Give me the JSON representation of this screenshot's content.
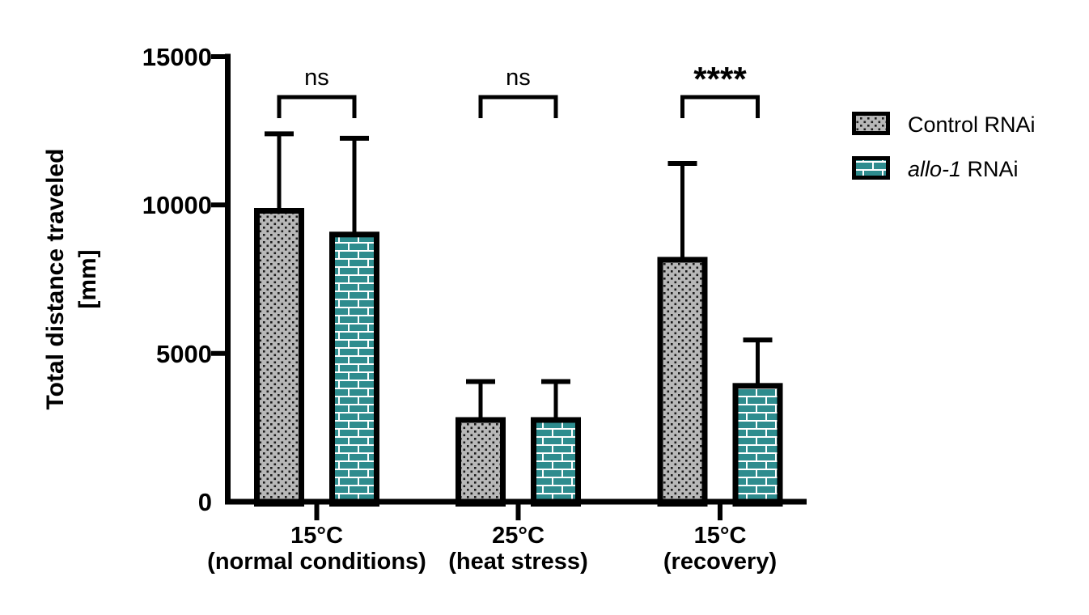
{
  "figure": {
    "background": "#ffffff"
  },
  "colors": {
    "control_fill": "#b8b8b8",
    "dot": "#1a1a1a",
    "allo1_fill": "#2E8C8E",
    "mortar": "#ffffff",
    "outline": "#000000"
  },
  "chart_data": {
    "type": "bar",
    "title": "",
    "ylabel_lines": [
      "Total distance traveled",
      "[mm]"
    ],
    "xlabel": "",
    "ylim": [
      0,
      15000
    ],
    "yticks": [
      0,
      5000,
      10000,
      15000
    ],
    "ytick_labels_top_to_bottom": [
      "15000",
      "10000",
      "5000",
      "0"
    ],
    "grid": false,
    "legend_position": "right",
    "error_bars": "upper SD only",
    "categories": [
      {
        "label": "15°C",
        "sublabel": "(normal conditions)"
      },
      {
        "label": "25°C",
        "sublabel": "(heat stress)"
      },
      {
        "label": "15°C",
        "sublabel": "(recovery)"
      }
    ],
    "series": [
      {
        "name": "Control RNAi",
        "pattern": "dots",
        "fill": "#b8b8b8",
        "values": [
          9900,
          2850,
          8250
        ],
        "errors": [
          2500,
          1200,
          3150
        ]
      },
      {
        "name": "allo-1 RNAi",
        "pattern": "bricks",
        "fill": "#2E8C8E",
        "values": [
          9100,
          2850,
          4000
        ],
        "errors": [
          3150,
          1200,
          1450
        ]
      }
    ],
    "significance": [
      "ns",
      "ns",
      "****"
    ]
  },
  "legend": {
    "items": [
      {
        "swatch": "dots",
        "text": "Control RNAi"
      },
      {
        "swatch": "bricks",
        "text_italic": "allo-1",
        "text": " RNAi"
      }
    ]
  }
}
